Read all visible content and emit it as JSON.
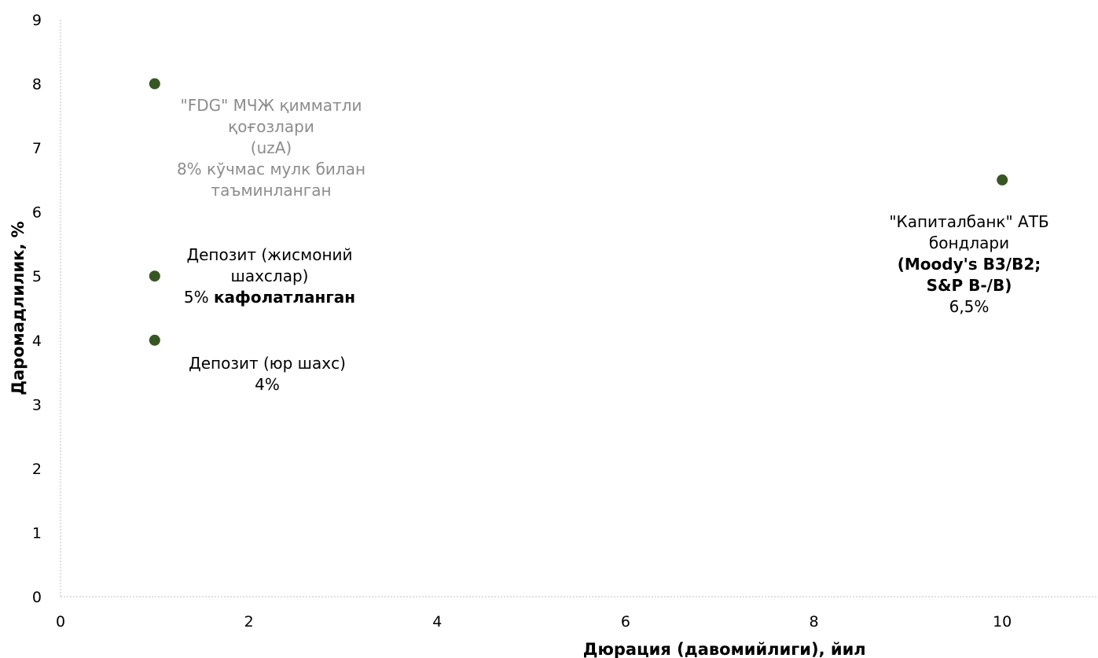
{
  "chart_data": {
    "type": "scatter",
    "xlabel": "Дюрация (давомийлиги), йил",
    "ylabel": "Даромадлилик, %",
    "xlim": [
      0,
      11
    ],
    "ylim": [
      0,
      9
    ],
    "x_ticks": [
      "0",
      "2",
      "4",
      "6",
      "8",
      "10"
    ],
    "y_ticks": [
      "0",
      "1",
      "2",
      "3",
      "4",
      "5",
      "6",
      "7",
      "8",
      "9"
    ],
    "grid": false,
    "point_color": "#375623",
    "points": [
      {
        "x": 1,
        "y": 8,
        "label_lines": [
          [
            {
              "t": "\"FDG\" МЧЖ қимматли",
              "b": false
            }
          ],
          [
            {
              "t": "қоғозлари",
              "b": false
            }
          ],
          [
            {
              "t": "(uzA)",
              "b": false
            }
          ],
          [
            {
              "t": "8% кўчмас мулк билан",
              "b": false
            }
          ],
          [
            {
              "t": "таъминланган",
              "b": false
            }
          ]
        ],
        "label_color": "#8c8c8c"
      },
      {
        "x": 1,
        "y": 5,
        "label_lines": [
          [
            {
              "t": "Депозит (жисмоний",
              "b": false
            }
          ],
          [
            {
              "t": "шахслар)",
              "b": false
            }
          ],
          [
            {
              "t": "5% ",
              "b": false
            },
            {
              "t": "кафолатланган",
              "b": true
            }
          ]
        ],
        "label_color": "#000000"
      },
      {
        "x": 1,
        "y": 4,
        "label_lines": [
          [
            {
              "t": "Депозит (юр шахс)",
              "b": false
            }
          ],
          [
            {
              "t": "4%",
              "b": false
            }
          ]
        ],
        "label_color": "#000000"
      },
      {
        "x": 10,
        "y": 6.5,
        "label_lines": [
          [
            {
              "t": "\"Капиталбанк\" АТБ",
              "b": false
            }
          ],
          [
            {
              "t": "бондлари",
              "b": false
            }
          ],
          [
            {
              "t": "(Moody's B3/B2;",
              "b": true
            }
          ],
          [
            {
              "t": "S&P B-/B)",
              "b": true
            }
          ],
          [
            {
              "t": "6,5%",
              "b": false
            }
          ]
        ],
        "label_color": "#000000"
      }
    ]
  }
}
